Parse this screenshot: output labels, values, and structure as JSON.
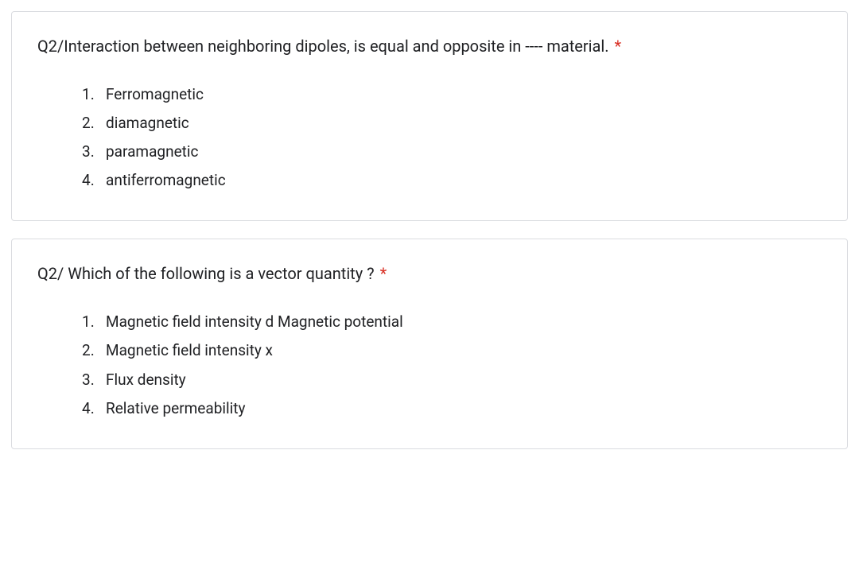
{
  "questions": [
    {
      "title": "Q2/Interaction between neighboring dipoles, is equal and opposite in ---- material.",
      "required_mark": "*",
      "options": [
        "Ferromagnetic",
        "diamagnetic",
        "paramagnetic",
        "antiferromagnetic"
      ]
    },
    {
      "title": "Q2/ Which of the following is a vector quantity ?",
      "required_mark": "*",
      "options": [
        "Magnetic field intensity d Magnetic potential",
        "Magnetic field intensity x",
        "Flux density",
        "Relative permeability"
      ]
    }
  ],
  "colors": {
    "border": "#dadce0",
    "text": "#202124",
    "required": "#d93025",
    "background": "#ffffff"
  }
}
